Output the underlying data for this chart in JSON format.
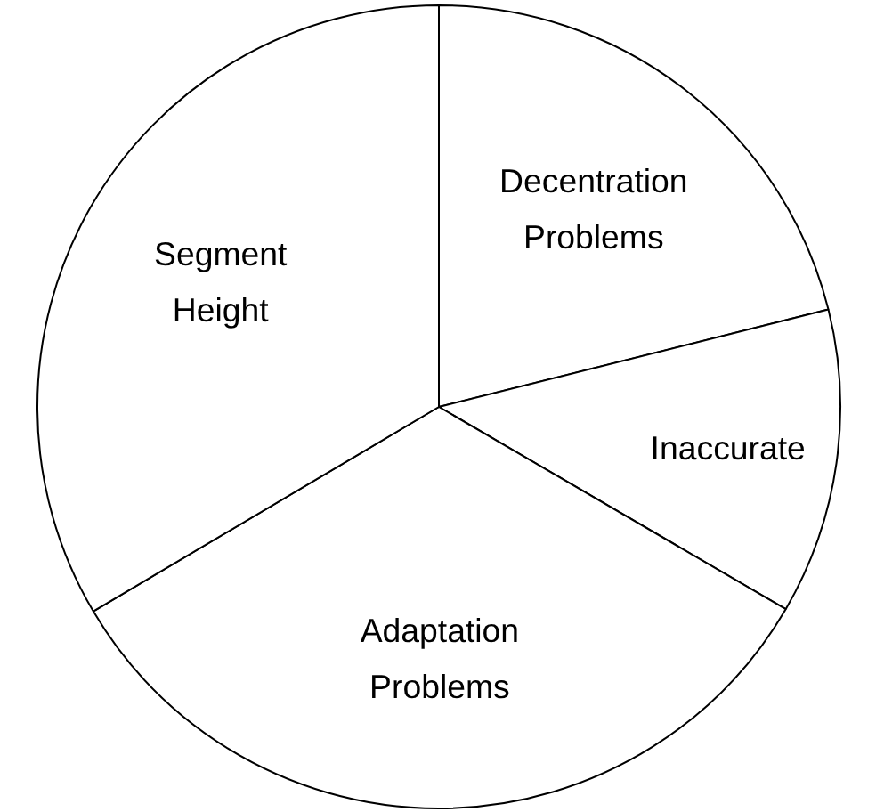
{
  "chart_data": {
    "type": "pie",
    "categories": [
      "Decentration Problems",
      "Inaccurate",
      "Adaptation Problems",
      "Segment Height"
    ],
    "values": [
      21.1,
      12.3,
      33.1,
      33.5
    ],
    "colors": [
      "#ffffff",
      "#ffffff",
      "#ffffff",
      "#ffffff"
    ]
  }
}
